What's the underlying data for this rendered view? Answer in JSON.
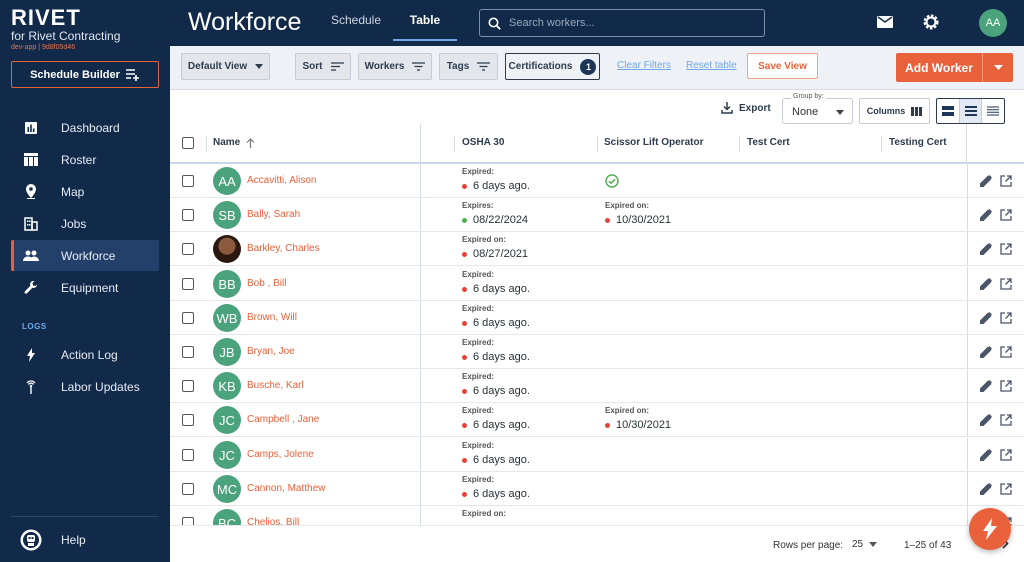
{
  "brand": {
    "logo": "RIVET",
    "subtitle": "for Rivet Contracting",
    "env": "dev-app | 9d8f05d46"
  },
  "sidebar": {
    "schedule_builder": "Schedule Builder",
    "items": [
      {
        "label": "Dashboard",
        "icon": "dashboard-icon"
      },
      {
        "label": "Roster",
        "icon": "roster-icon"
      },
      {
        "label": "Map",
        "icon": "map-pin-icon"
      },
      {
        "label": "Jobs",
        "icon": "jobs-icon"
      },
      {
        "label": "Workforce",
        "icon": "workforce-icon",
        "active": true
      },
      {
        "label": "Equipment",
        "icon": "wrench-icon"
      }
    ],
    "logs_section": "LOGS",
    "log_items": [
      {
        "label": "Action Log",
        "icon": "bolt-icon"
      },
      {
        "label": "Labor Updates",
        "icon": "signal-tower-icon"
      }
    ],
    "help": "Help"
  },
  "header": {
    "title": "Workforce",
    "tabs": [
      {
        "label": "Schedule"
      },
      {
        "label": "Table",
        "active": true
      }
    ],
    "search_placeholder": "Search workers...",
    "user_initials": "AA"
  },
  "toolbar": {
    "default_view": "Default View",
    "sort": "Sort",
    "workers": "Workers",
    "tags": "Tags",
    "certifications": "Certifications",
    "cert_count": "1",
    "clear_filters": "Clear Filters",
    "reset_table": "Reset table",
    "save_view": "Save View",
    "add_worker": "Add Worker"
  },
  "table_actions": {
    "export": "Export",
    "group_by_label": "Group by:",
    "group_by_value": "None",
    "columns": "Columns"
  },
  "table": {
    "columns": [
      "Name",
      "OSHA 30",
      "Scissor Lift Operator",
      "Test Cert",
      "Testing Cert"
    ],
    "rows": [
      {
        "initials": "AA",
        "name": "Accavitti, Alison",
        "osha_label": "Expired:",
        "osha_value": "6 days ago.",
        "osha_status": "red",
        "scissor_check": true
      },
      {
        "initials": "SB",
        "name": "Bally, Sarah",
        "osha_label": "Expires:",
        "osha_value": "08/22/2024",
        "osha_status": "green",
        "scissor_label": "Expired on:",
        "scissor_value": "10/30/2021"
      },
      {
        "initials": "",
        "name": "Barkley, Charles",
        "photo": true,
        "osha_label": "Expired on:",
        "osha_value": "08/27/2021",
        "osha_status": "red"
      },
      {
        "initials": "BB",
        "name": "Bob , Bill",
        "osha_label": "Expired:",
        "osha_value": "6 days ago.",
        "osha_status": "red"
      },
      {
        "initials": "WB",
        "name": "Brown, Will",
        "osha_label": "Expired:",
        "osha_value": "6 days ago.",
        "osha_status": "red"
      },
      {
        "initials": "JB",
        "name": "Bryan, Joe",
        "osha_label": "Expired:",
        "osha_value": "6 days ago.",
        "osha_status": "red"
      },
      {
        "initials": "KB",
        "name": "Busche, Karl",
        "osha_label": "Expired:",
        "osha_value": "6 days ago.",
        "osha_status": "red"
      },
      {
        "initials": "JC",
        "name": "Campbell , Jane",
        "osha_label": "Expired:",
        "osha_value": "6 days ago.",
        "osha_status": "red",
        "scissor_label": "Expired on:",
        "scissor_value": "10/30/2021"
      },
      {
        "initials": "JC",
        "name": "Camps, Jolene",
        "osha_label": "Expired:",
        "osha_value": "6 days ago.",
        "osha_status": "red"
      },
      {
        "initials": "MC",
        "name": "Cannon, Matthew",
        "osha_label": "Expired:",
        "osha_value": "6 days ago.",
        "osha_status": "red"
      },
      {
        "initials": "BC",
        "name": "Chelios, Bill",
        "osha_label": "Expired on:",
        "osha_value": "",
        "osha_status": "red"
      }
    ]
  },
  "pagination": {
    "rows_per_page_label": "Rows per page:",
    "rows_per_page": "25",
    "range": "1–25 of 43"
  },
  "colors": {
    "accent": "#e8613a",
    "nav_bg": "#122a4a",
    "avatar_green": "#4aa37c",
    "expired_red": "#e0453a",
    "valid_green": "#4caf50",
    "link_blue": "#6fa8e8"
  }
}
